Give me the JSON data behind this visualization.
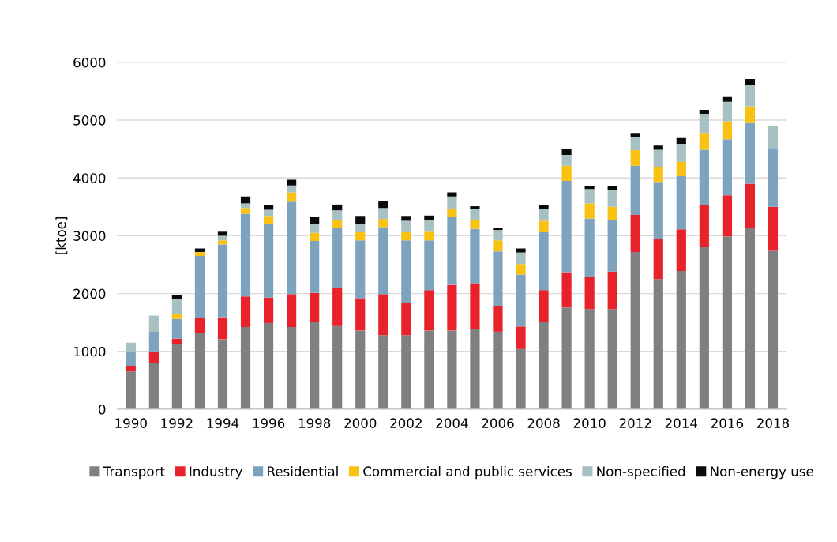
{
  "chart_data": {
    "type": "bar",
    "stacked": true,
    "ylabel": "[ktoe]",
    "categories": [
      "1990",
      null,
      "1992",
      null,
      "1994",
      null,
      "1996",
      null,
      "1998",
      null,
      "2000",
      null,
      "2002",
      null,
      "2004",
      null,
      "2006",
      null,
      "2008",
      null,
      "2010",
      null,
      "2012",
      null,
      "2014",
      null,
      "2016",
      null,
      "2018"
    ],
    "series": [
      {
        "name": "Transport",
        "color": "#808080",
        "values": [
          650,
          800,
          1130,
          1320,
          1210,
          1420,
          1490,
          1420,
          1510,
          1450,
          1360,
          1280,
          1280,
          1360,
          1360,
          1390,
          1340,
          1040,
          1510,
          1760,
          1730,
          1730,
          2720,
          2250,
          2390,
          2810,
          2990,
          3140,
          2740
        ]
      },
      {
        "name": "Industry",
        "color": "#e8222a",
        "values": [
          100,
          200,
          90,
          250,
          380,
          530,
          440,
          570,
          500,
          640,
          560,
          710,
          560,
          700,
          790,
          790,
          450,
          390,
          550,
          610,
          560,
          650,
          640,
          700,
          720,
          720,
          710,
          760,
          760
        ]
      },
      {
        "name": "Residential",
        "color": "#7ea3bf",
        "values": [
          250,
          350,
          340,
          1080,
          1260,
          1430,
          1280,
          1600,
          900,
          1040,
          1000,
          1160,
          1080,
          860,
          1170,
          940,
          940,
          900,
          1000,
          1580,
          1010,
          890,
          850,
          980,
          920,
          960,
          970,
          1050,
          1020
        ]
      },
      {
        "name": "Commercial and public services",
        "color": "#f9c112",
        "values": [
          0,
          0,
          90,
          70,
          70,
          100,
          120,
          160,
          140,
          150,
          140,
          140,
          140,
          150,
          140,
          160,
          190,
          180,
          200,
          260,
          260,
          230,
          270,
          250,
          250,
          290,
          310,
          290,
          0
        ]
      },
      {
        "name": "Non-specified",
        "color": "#a7c0c2",
        "values": [
          150,
          270,
          250,
          null,
          80,
          80,
          120,
          120,
          160,
          160,
          150,
          190,
          200,
          200,
          220,
          190,
          180,
          200,
          200,
          190,
          250,
          290,
          230,
          310,
          310,
          330,
          340,
          370,
          380
        ]
      },
      {
        "name": "Non-energy use",
        "color": "#0a0a0a",
        "values": [
          0,
          0,
          70,
          60,
          70,
          120,
          80,
          100,
          110,
          100,
          120,
          120,
          70,
          80,
          70,
          40,
          40,
          70,
          70,
          100,
          50,
          70,
          70,
          70,
          100,
          70,
          80,
          100,
          0
        ]
      }
    ],
    "ylim": [
      0,
      6000
    ],
    "yticks": [
      0,
      1000,
      2000,
      3000,
      4000,
      5000,
      6000
    ],
    "grid": "y",
    "legend": "bottom"
  }
}
